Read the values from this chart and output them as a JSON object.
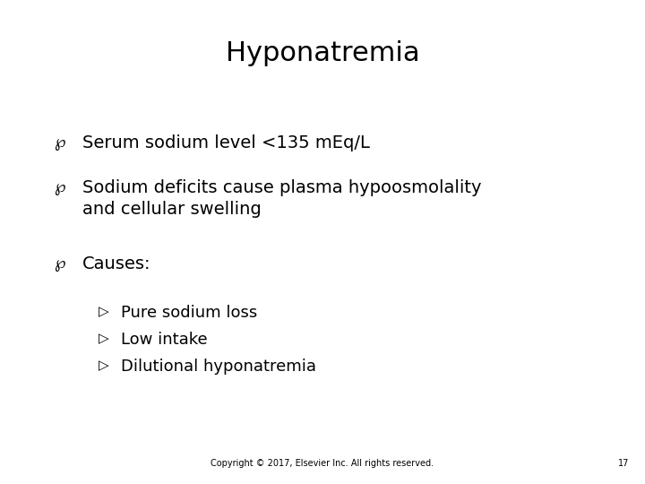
{
  "title": "Hyponatremia",
  "title_fontsize": 22,
  "title_fontweight": "normal",
  "background_color": "#ffffff",
  "text_color": "#000000",
  "bullets": [
    "Serum sodium level <135 mEq/L",
    "Sodium deficits cause plasma hypoosmolality\nand cellular swelling",
    "Causes:"
  ],
  "sub_bullets": [
    "Pure sodium loss",
    "Low intake",
    "Dilutional hyponatremia"
  ],
  "footer": "Copyright © 2017, Elsevier Inc. All rights reserved.",
  "footer_page": "17",
  "footer_fontsize": 7,
  "body_fontsize": 14,
  "sub_fontsize": 13,
  "bullet_symbol": "⚀",
  "sub_bullet_symbol": "▷"
}
